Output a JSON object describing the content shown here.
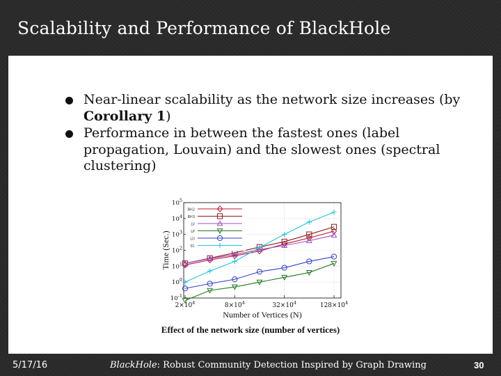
{
  "slide": {
    "title": "Scalability and Performance of BlackHole",
    "bullets": [
      {
        "text": "Near-linear scalability as the network size increases (by ",
        "bold": "Corollary 1",
        "after": ")"
      },
      {
        "text": "Performance in between the fastest ones (label propagation, Louvain) and the slowest ones (spectral clustering)",
        "bold": "",
        "after": ""
      }
    ],
    "caption": "Effect of the network size (number of vertices)",
    "footer": {
      "date": "5/17/16",
      "center_italic": "BlackHole",
      "center_rest": ": Robust Community Detection Inspired by Graph Drawing",
      "page": "30"
    }
  },
  "chart_data": {
    "type": "line",
    "xlabel": "Number of Vertices (N)",
    "ylabel": "Time (Sec.)",
    "x_ticks": [
      "2×10^4",
      "8×10^4",
      "32×10^4",
      "128×10^4"
    ],
    "y_ticks": [
      "10^-1",
      "10^0",
      "10^1",
      "10^2",
      "10^3",
      "10^4",
      "10^5"
    ],
    "y_scale": "log",
    "ylim_log10": [
      -1,
      5
    ],
    "x_points": [
      20000,
      40000,
      80000,
      160000,
      320000,
      640000,
      1280000
    ],
    "legend_position": "top-left",
    "series": [
      {
        "name": "BH2",
        "color": "#c0142a",
        "marker": "diamond",
        "values": [
          12,
          25,
          45,
          90,
          250,
          600,
          1600
        ]
      },
      {
        "name": "BH3",
        "color": "#8b1a1a",
        "marker": "square",
        "values": [
          15,
          32,
          70,
          160,
          350,
          1000,
          3000
        ]
      },
      {
        "name": "LV",
        "color": "#9b4fc9",
        "marker": "triangle",
        "values": [
          15,
          30,
          55,
          110,
          200,
          400,
          900
        ]
      },
      {
        "name": "LP",
        "color": "#1f7a1f",
        "marker": "triangle-down",
        "values": [
          0.07,
          0.3,
          0.5,
          1.0,
          2.0,
          4.0,
          15
        ]
      },
      {
        "name": "LD",
        "color": "#2f3fd0",
        "marker": "circle",
        "values": [
          0.4,
          0.8,
          1.5,
          4.5,
          8,
          20,
          40
        ]
      },
      {
        "name": "SC",
        "color": "#1ec5e0",
        "marker": "plus",
        "values": [
          1.0,
          5.0,
          20,
          150,
          1000,
          6000,
          25000
        ]
      }
    ]
  }
}
